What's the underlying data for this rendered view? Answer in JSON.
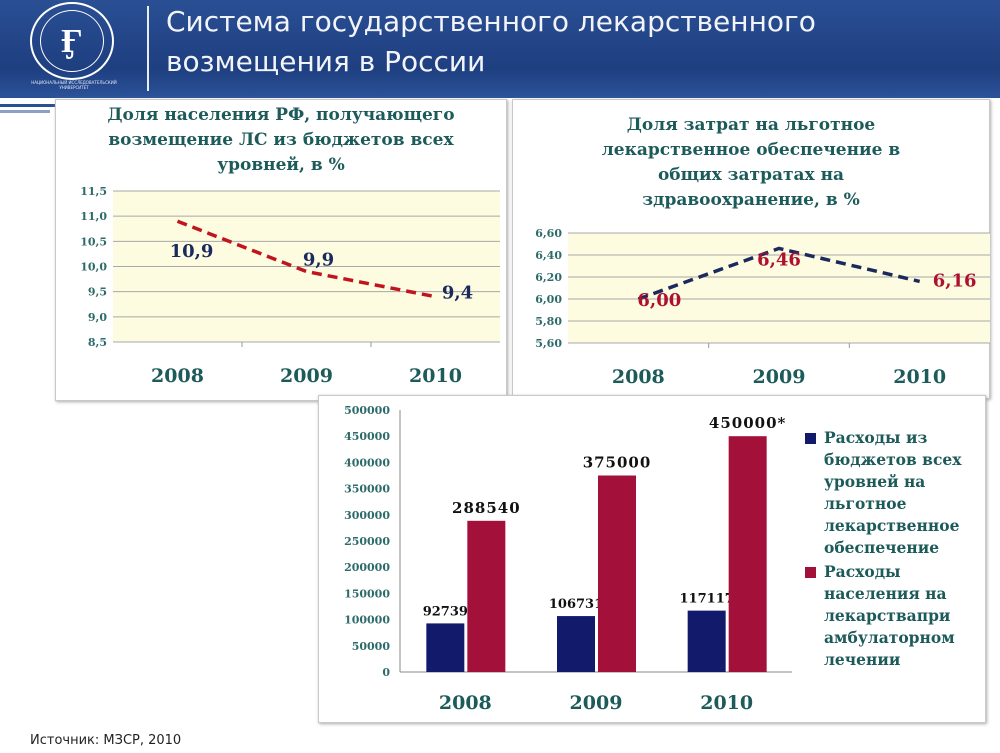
{
  "header": {
    "title_line1": "Система  государственного лекарственного",
    "title_line2": "возмещения в России",
    "logo_caption": "НАЦИОНАЛЬНЫЙ ИССЛЕДОВАТЕЛЬСКИЙ УНИВЕРСИТЕТ",
    "logo_letters": "ВШЭ"
  },
  "source": "Источник: МЗСР, 2010",
  "colors": {
    "header": "#1e3f80",
    "title": "#1d5a5a",
    "plot_bg": "#fdfbe0",
    "red": "#b01030",
    "navy": "#141a6e",
    "bar_red": "#a3103a",
    "bar_blue": "#111a6b"
  },
  "chart_data": [
    {
      "type": "line",
      "title_lines": [
        "Доля населения РФ, получающего",
        "возмещение ЛС из бюджетов всех",
        "уровней, в %"
      ],
      "categories": [
        "2008",
        "2009",
        "2010"
      ],
      "values": [
        10.9,
        9.9,
        9.4
      ],
      "labels": [
        "10,9",
        "9,9",
        "9,4"
      ],
      "ylim": [
        8.5,
        11.5
      ],
      "yticks": [
        "8,5",
        "9,0",
        "9,5",
        "10,0",
        "10,5",
        "11,0",
        "11,5"
      ],
      "line_color": "#c0141e",
      "label_color": "#1a2a5e",
      "grid": true
    },
    {
      "type": "line",
      "title_lines": [
        "Доля затрат на льготное",
        "лекарственное обеспечение в",
        "общих затратах на",
        "здравоохранение, в %"
      ],
      "categories": [
        "2008",
        "2009",
        "2010"
      ],
      "values": [
        6.0,
        6.46,
        6.16
      ],
      "labels": [
        "6,00",
        "6,46",
        "6,16"
      ],
      "ylim": [
        5.6,
        6.6
      ],
      "yticks": [
        "5,60",
        "5,80",
        "6,00",
        "6,20",
        "6,40",
        "6,60"
      ],
      "line_color": "#1a2a5e",
      "label_color": "#b01030",
      "grid": true
    },
    {
      "type": "bar",
      "categories": [
        "2008",
        "2009",
        "2010"
      ],
      "ylim": [
        0,
        500000
      ],
      "yticks": [
        "0",
        "50000",
        "100000",
        "150000",
        "200000",
        "250000",
        "300000",
        "350000",
        "400000",
        "450000",
        "500000"
      ],
      "series": [
        {
          "name": "Расходы из бюджетов всех уровней на льготное лекарственное обеспечение",
          "values": [
            92739,
            106731,
            117117
          ],
          "labels": [
            "92739",
            "106731",
            "117117"
          ]
        },
        {
          "name": "Расходы населения на лекарствапри амбулаторном лечении",
          "values": [
            288540,
            375000,
            450000
          ],
          "labels": [
            "288540",
            "375000",
            "450000*"
          ]
        }
      ],
      "legend": "right"
    }
  ]
}
